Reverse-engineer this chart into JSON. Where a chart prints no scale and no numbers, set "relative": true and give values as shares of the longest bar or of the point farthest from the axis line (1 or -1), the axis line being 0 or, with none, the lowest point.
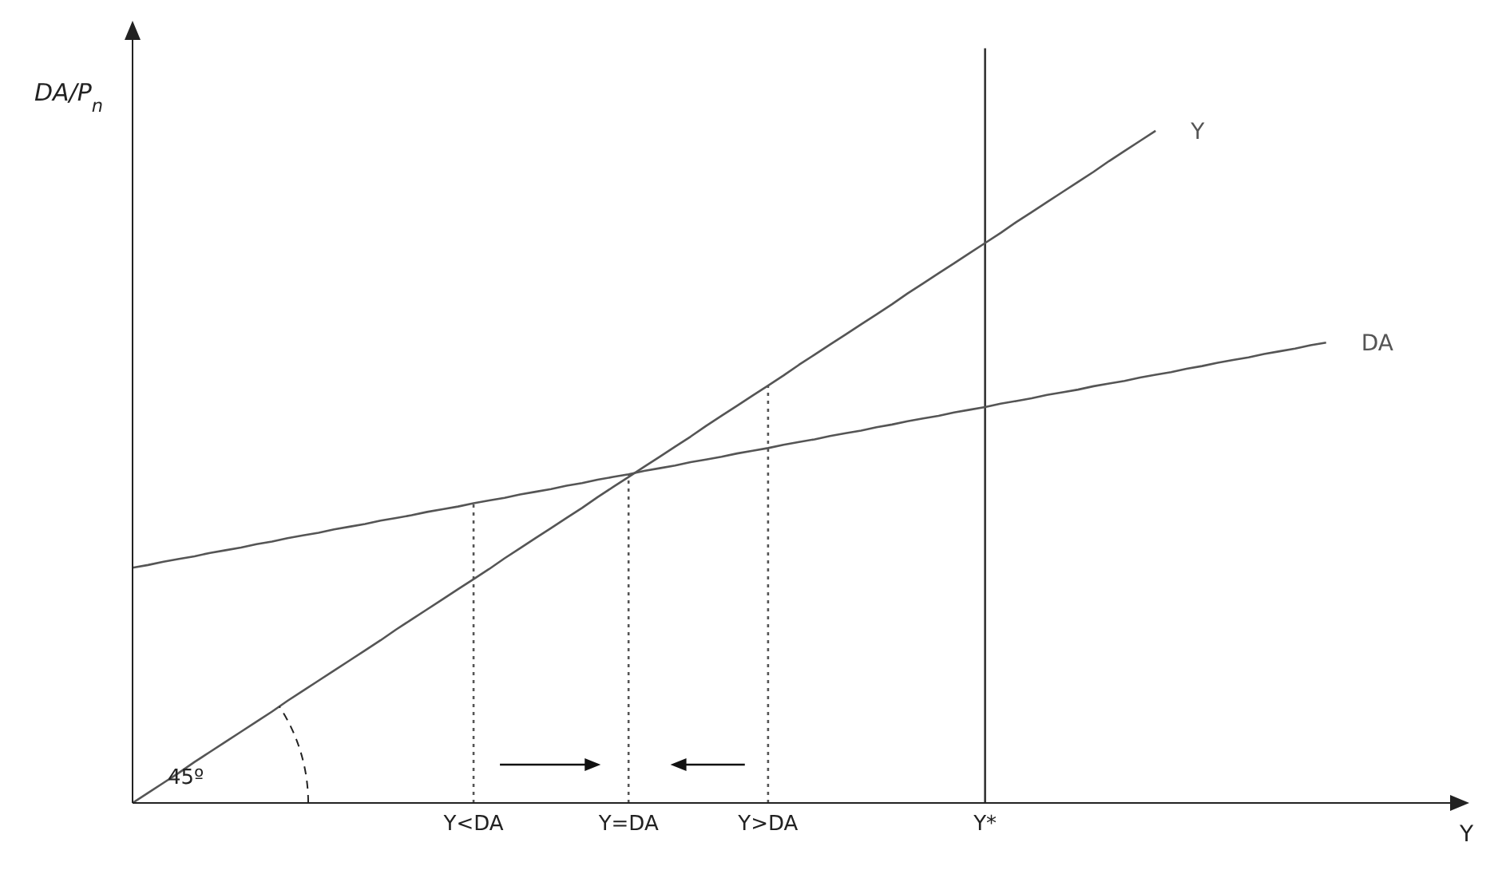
{
  "chart_data": {
    "type": "line",
    "relative": true,
    "ylabel": "DA/P$_{n}$",
    "xlabel": "Y",
    "marker": "none",
    "categories": [
      null,
      null,
      null,
      null,
      null,
      null,
      null,
      null,
      null,
      null,
      null,
      null,
      null,
      null,
      null,
      null,
      null,
      null,
      null,
      null,
      null,
      null,
      "Y<DA",
      null,
      null,
      null,
      null,
      null,
      null,
      null,
      null,
      null,
      "Y=DA",
      null,
      null,
      null,
      null,
      null,
      null,
      null,
      null,
      "Y>DA",
      null,
      null,
      null,
      null,
      null,
      null,
      null,
      null,
      null,
      null,
      null,
      null,
      null,
      "Y*",
      null,
      null,
      null,
      null,
      null,
      null,
      null,
      null,
      null,
      null,
      null,
      null,
      null,
      null,
      null,
      null,
      null,
      null,
      null,
      null,
      null,
      null,
      null,
      null,
      null,
      null,
      null,
      null,
      null,
      null
    ],
    "series": [
      {
        "name": "Y",
        "color": "#555555",
        "values": [
          0,
          0.015,
          0.03,
          0.045,
          0.061,
          0.076,
          0.091,
          0.106,
          0.121,
          0.136,
          0.152,
          0.167,
          0.182,
          0.197,
          0.212,
          0.227,
          0.242,
          0.258,
          0.273,
          0.288,
          0.303,
          0.318,
          0.333,
          0.348,
          0.364,
          0.379,
          0.394,
          0.409,
          0.424,
          0.439,
          0.455,
          0.47,
          0.485,
          0.5,
          0.515,
          0.53,
          0.545,
          0.561,
          0.576,
          0.591,
          0.606,
          0.621,
          0.636,
          0.652,
          0.667,
          0.682,
          0.697,
          0.712,
          0.727,
          0.742,
          0.758,
          0.773,
          0.788,
          0.803,
          0.818,
          0.833,
          0.848,
          0.864,
          0.879,
          0.894,
          0.909,
          0.924,
          0.939,
          0.955,
          0.97,
          0.985,
          1,
          null,
          null,
          null,
          null,
          null,
          null,
          null,
          null,
          null,
          null,
          null,
          null,
          null,
          null,
          null,
          null,
          null,
          null,
          null
        ]
      },
      {
        "name": "DA",
        "color": "#555555",
        "values": [
          0.35,
          0.354,
          0.359,
          0.363,
          0.367,
          0.372,
          0.376,
          0.38,
          0.385,
          0.389,
          0.394,
          0.398,
          0.402,
          0.407,
          0.411,
          0.415,
          0.42,
          0.424,
          0.428,
          0.433,
          0.437,
          0.441,
          0.446,
          0.45,
          0.454,
          0.459,
          0.463,
          0.467,
          0.472,
          0.476,
          0.481,
          0.485,
          0.489,
          0.494,
          0.498,
          0.502,
          0.507,
          0.511,
          0.515,
          0.52,
          0.524,
          0.528,
          0.533,
          0.537,
          0.541,
          0.546,
          0.55,
          0.554,
          0.559,
          0.563,
          0.568,
          0.572,
          0.576,
          0.581,
          0.585,
          0.589,
          0.594,
          0.598,
          0.602,
          0.607,
          0.611,
          0.615,
          0.62,
          0.624,
          0.628,
          0.633,
          0.637,
          0.641,
          0.646,
          0.65,
          0.655,
          0.659,
          0.663,
          0.668,
          0.672,
          0.676,
          0.681,
          0.685,
          null,
          null,
          null,
          null,
          null,
          null,
          null,
          null
        ]
      }
    ],
    "ref_lines": [
      {
        "axis": "x",
        "value": "Y<DA",
        "line_style": "dotted",
        "color": "#555555"
      },
      {
        "axis": "x",
        "value": "Y=DA",
        "line_style": "dotted",
        "color": "#555555"
      },
      {
        "axis": "x",
        "value": "Y>DA",
        "line_style": "dotted",
        "color": "#555555"
      },
      {
        "axis": "x",
        "value": "Y*",
        "color": "#333333"
      }
    ],
    "annotations": [
      "45º"
    ]
  }
}
